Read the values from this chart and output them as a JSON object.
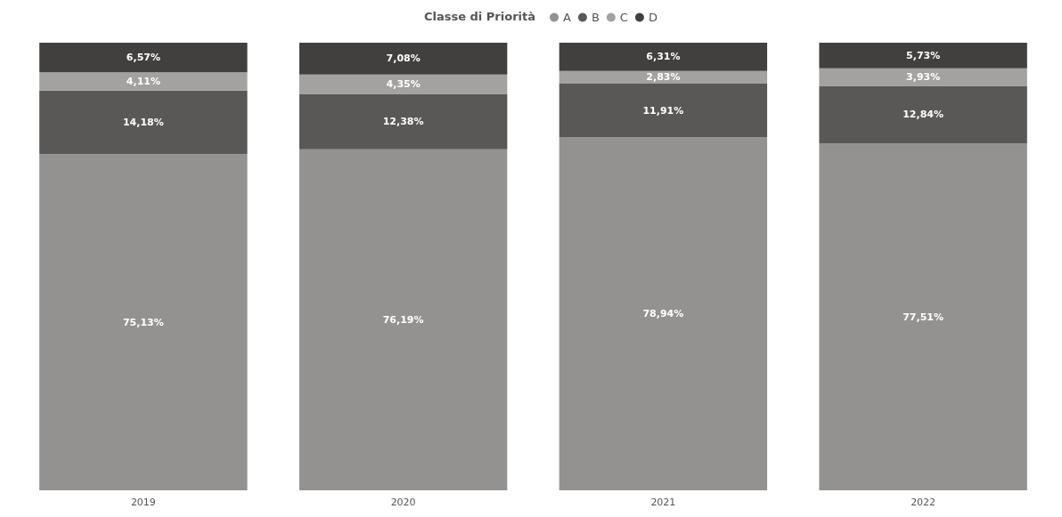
{
  "chart_data": {
    "type": "bar",
    "stacked": true,
    "legend": "top",
    "legend_title": "Classe di Priorità",
    "tick_labels": "x",
    "categories": [
      "2019",
      "2020",
      "2021",
      "2022"
    ],
    "series": [
      {
        "name": "A",
        "color": "#939291",
        "values": [
          75.13,
          76.19,
          78.94,
          77.51
        ],
        "value_labels": [
          "75,13%",
          "76,19%",
          "78,94%",
          "77,51%"
        ]
      },
      {
        "name": "B",
        "color": "#5a5856",
        "values": [
          14.18,
          12.38,
          11.91,
          12.84
        ],
        "value_labels": [
          "14,18%",
          "12,38%",
          "11,91%",
          "12,84%"
        ]
      },
      {
        "name": "C",
        "color": "#a3a2a1",
        "values": [
          4.11,
          4.35,
          2.83,
          3.93
        ],
        "value_labels": [
          "4,11%",
          "4,35%",
          "2,83%",
          "3,93%"
        ]
      },
      {
        "name": "D",
        "color": "#42403e",
        "values": [
          6.57,
          7.08,
          6.31,
          5.73
        ],
        "value_labels": [
          "6,57%",
          "7,08%",
          "6,31%",
          "5,73%"
        ]
      }
    ]
  }
}
